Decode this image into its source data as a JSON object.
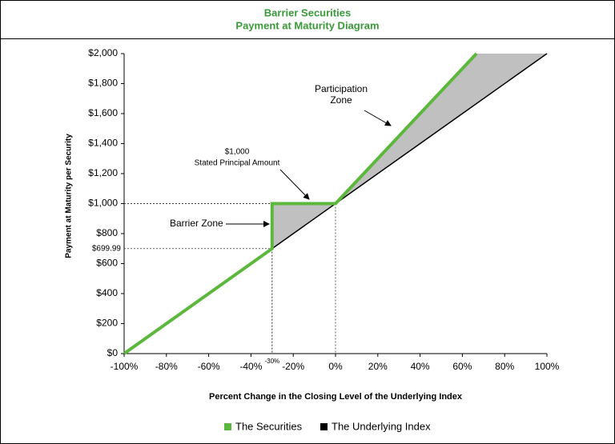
{
  "chart_data": {
    "type": "line",
    "title": "Barrier Securities",
    "subtitle": "Payment at Maturity Diagram",
    "x_label": "Percent Change in the Closing Level of the Underlying Index",
    "y_label": "Payment  at Maturity per Security",
    "xlim": [
      -100,
      100
    ],
    "ylim": [
      0,
      2000
    ],
    "xticks": [
      {
        "value": -100,
        "label": "-100%"
      },
      {
        "value": -80,
        "label": "-80%"
      },
      {
        "value": -60,
        "label": "-60%"
      },
      {
        "value": -40,
        "label": "-40%"
      },
      {
        "value": -20,
        "label": "-20%"
      },
      {
        "value": 0,
        "label": "0%"
      },
      {
        "value": 20,
        "label": "20%"
      },
      {
        "value": 40,
        "label": "40%"
      },
      {
        "value": 60,
        "label": "60%"
      },
      {
        "value": 80,
        "label": "80%"
      },
      {
        "value": 100,
        "label": "100%"
      }
    ],
    "yticks": [
      {
        "value": 0,
        "label": "$0"
      },
      {
        "value": 200,
        "label": "$200"
      },
      {
        "value": 400,
        "label": "$400"
      },
      {
        "value": 600,
        "label": "$600"
      },
      {
        "value": 800,
        "label": "$800"
      },
      {
        "value": 1000,
        "label": "$1,000"
      },
      {
        "value": 1200,
        "label": "$1,200"
      },
      {
        "value": 1400,
        "label": "$1,400"
      },
      {
        "value": 1600,
        "label": "$1,600"
      },
      {
        "value": 1800,
        "label": "$1,800"
      },
      {
        "value": 2000,
        "label": "$2,000"
      }
    ],
    "extra_xticks": [
      {
        "value": -30,
        "label": "-30%"
      }
    ],
    "extra_yticks": [
      {
        "value": 699.99,
        "label": "$699.99"
      }
    ],
    "series": [
      {
        "name": "The Underlying Index",
        "color": "#000000",
        "x": [
          -100,
          100
        ],
        "values": [
          0,
          2000
        ]
      },
      {
        "name": "The Securities",
        "color": "#5cb83c",
        "x": [
          -100,
          -30,
          -30,
          0,
          66.67
        ],
        "values": [
          0,
          699.99,
          1000,
          1000,
          2000
        ]
      }
    ],
    "shade_color": "#c0c0c0",
    "annotations": [
      {
        "lines": [
          "Participation",
          "Zone"
        ]
      },
      {
        "lines": [
          "$1,000",
          "Stated Principal Amount"
        ]
      },
      {
        "lines": [
          "Barrier Zone"
        ]
      }
    ]
  }
}
